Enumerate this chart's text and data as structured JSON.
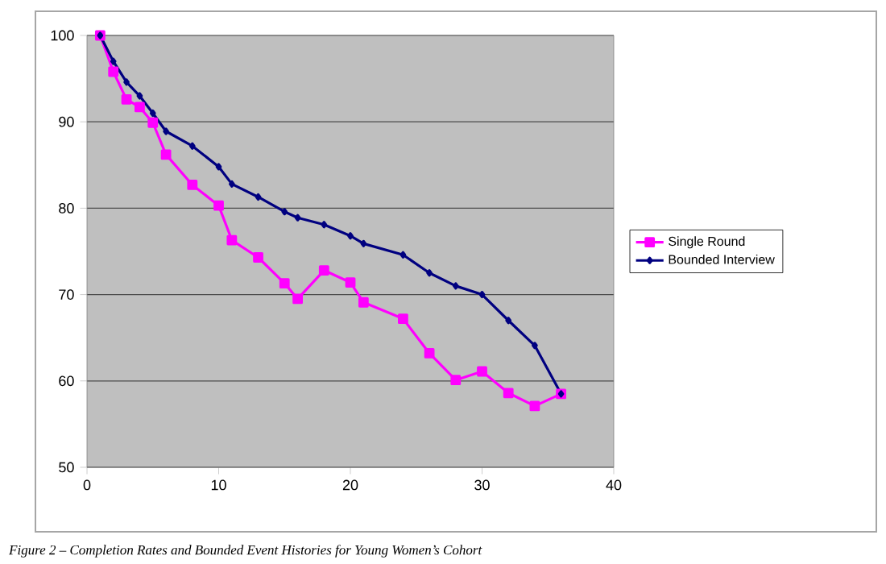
{
  "chart_data": {
    "type": "line",
    "x": [
      1,
      2,
      3,
      4,
      5,
      6,
      8,
      10,
      11,
      13,
      15,
      16,
      18,
      20,
      21,
      24,
      26,
      28,
      30,
      32,
      34,
      36
    ],
    "series": [
      {
        "name": "Single Round",
        "color": "#ff00ff",
        "marker": "square",
        "values": [
          100,
          95.8,
          92.6,
          91.7,
          89.9,
          86.2,
          82.7,
          80.3,
          76.3,
          74.3,
          71.3,
          69.5,
          72.8,
          71.4,
          69.1,
          67.2,
          63.2,
          60.1,
          61.1,
          58.6,
          57.1,
          58.5
        ]
      },
      {
        "name": "Bounded Interview",
        "color": "#000080",
        "marker": "diamond",
        "values": [
          100,
          97,
          94.6,
          93,
          91,
          88.9,
          87.2,
          84.8,
          82.8,
          81.3,
          79.6,
          78.9,
          78.1,
          76.8,
          75.9,
          74.6,
          72.5,
          71.0,
          70.0,
          67.0,
          64.1,
          58.5
        ]
      }
    ],
    "xlim": [
      0,
      40
    ],
    "xticks": [
      0,
      10,
      20,
      30,
      40
    ],
    "ylim": [
      50,
      100
    ],
    "yticks": [
      50,
      60,
      70,
      80,
      90,
      100
    ],
    "grid": "y",
    "legend": "right",
    "annotations": [
      "Figure 2 – Completion Rates and Bounded Event Histories for Young Women’s Cohort"
    ]
  }
}
